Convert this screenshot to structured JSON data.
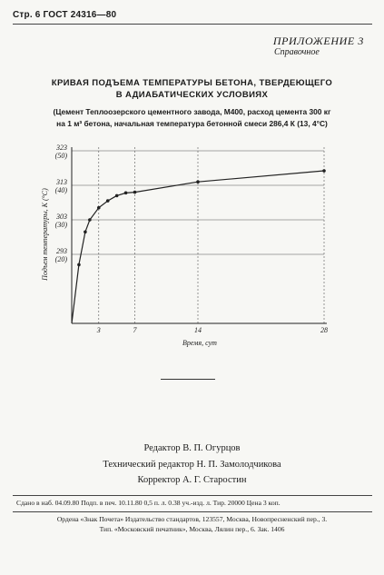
{
  "header": {
    "page_ref": "Стр. 6 ГОСТ 24316—80"
  },
  "appendix": {
    "title": "ПРИЛОЖЕНИЕ 3",
    "kind": "Справочное"
  },
  "figure": {
    "title_line1": "КРИВАЯ ПОДЪЕМА ТЕМПЕРАТУРЫ БЕТОНА, ТВЕРДЕЮЩЕГО",
    "title_line2": "В АДИАБАТИЧЕСКИХ УСЛОВИЯХ",
    "note_line1": "(Цемент Теплоозерского цементного завода, М400, расход цемента 300 кг",
    "note_line2": "на 1 м³ бетона, начальная температура бетонной смеси 286,4 К (13, 4°С)"
  },
  "chart_data": {
    "type": "line",
    "xlabel": "Время, сут",
    "ylabel": "Подъем температуры, К (°С)",
    "x_ticks": [
      "3",
      "7",
      "14",
      "28"
    ],
    "y_ticks": [
      {
        "k": "323",
        "c": "(50)"
      },
      {
        "k": "313",
        "c": "(40)"
      },
      {
        "k": "303",
        "c": "(30)"
      },
      {
        "k": "293",
        "c": "(20)"
      }
    ],
    "xlim": [
      0,
      28
    ],
    "ylim_c": [
      0,
      50
    ],
    "series": [
      {
        "x": [
          0,
          0.8,
          1.5,
          2,
          3,
          4,
          5,
          6,
          7,
          14,
          28
        ],
        "y": [
          0,
          17,
          26.5,
          30,
          33.5,
          35.5,
          37,
          37.8,
          38,
          41,
          44.2
        ]
      }
    ],
    "grid": true,
    "color": "#222222"
  },
  "credits": {
    "editor": "Редактор В. П. Огурцов",
    "tech_editor": "Технический редактор Н. П. Замолодчикова",
    "corrector": "Корректор А. Г. Старостин"
  },
  "imprint": {
    "line1": "Сдано в наб. 04.09.80  Подп. в печ. 10.11.80  0,5 п. л.  0.38 уч.-изд. л.  Тир. 20000  Цена 3 коп.",
    "line2": "Ордена «Знак Почета» Издательство стандартов, 123557, Москва, Новопресненский пер., 3.",
    "line3": "Тип. «Московский печатник», Москва, Лялин пер., 6. Зак. 1406"
  }
}
